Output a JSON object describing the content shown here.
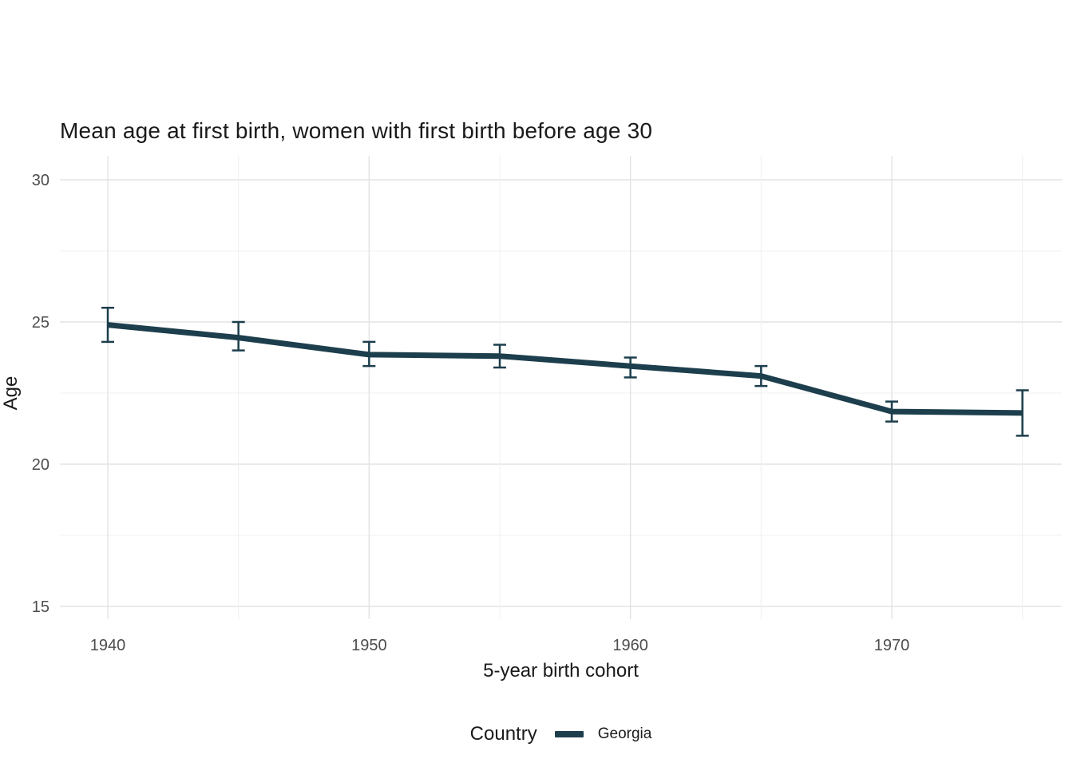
{
  "chart_data": {
    "type": "line",
    "title": "Mean age at first birth, women with first birth before age 30",
    "xlabel": "5-year birth cohort",
    "ylabel": "Age",
    "x": [
      1940,
      1945,
      1950,
      1955,
      1960,
      1965,
      1970,
      1975
    ],
    "series": [
      {
        "name": "Georgia",
        "values": [
          24.9,
          24.45,
          23.85,
          23.8,
          23.45,
          23.1,
          21.85,
          21.8
        ],
        "ci_low": [
          24.3,
          24.0,
          23.45,
          23.4,
          23.05,
          22.75,
          21.5,
          21.0
        ],
        "ci_high": [
          25.5,
          25.0,
          24.3,
          24.2,
          23.75,
          23.45,
          22.2,
          22.6
        ],
        "color": "#1d3e4d"
      }
    ],
    "ylim": [
      14.5,
      30.8
    ],
    "yticks": [
      15,
      20,
      25,
      30
    ],
    "xticks": [
      1940,
      1950,
      1960,
      1970
    ],
    "grid": true,
    "legend_title": "Country",
    "legend_position": "bottom",
    "colors": {
      "grid_major": "#e3e3e3",
      "grid_minor": "#f0f0f0",
      "tick_label": "#4d4d4d",
      "background": "#ffffff"
    }
  }
}
